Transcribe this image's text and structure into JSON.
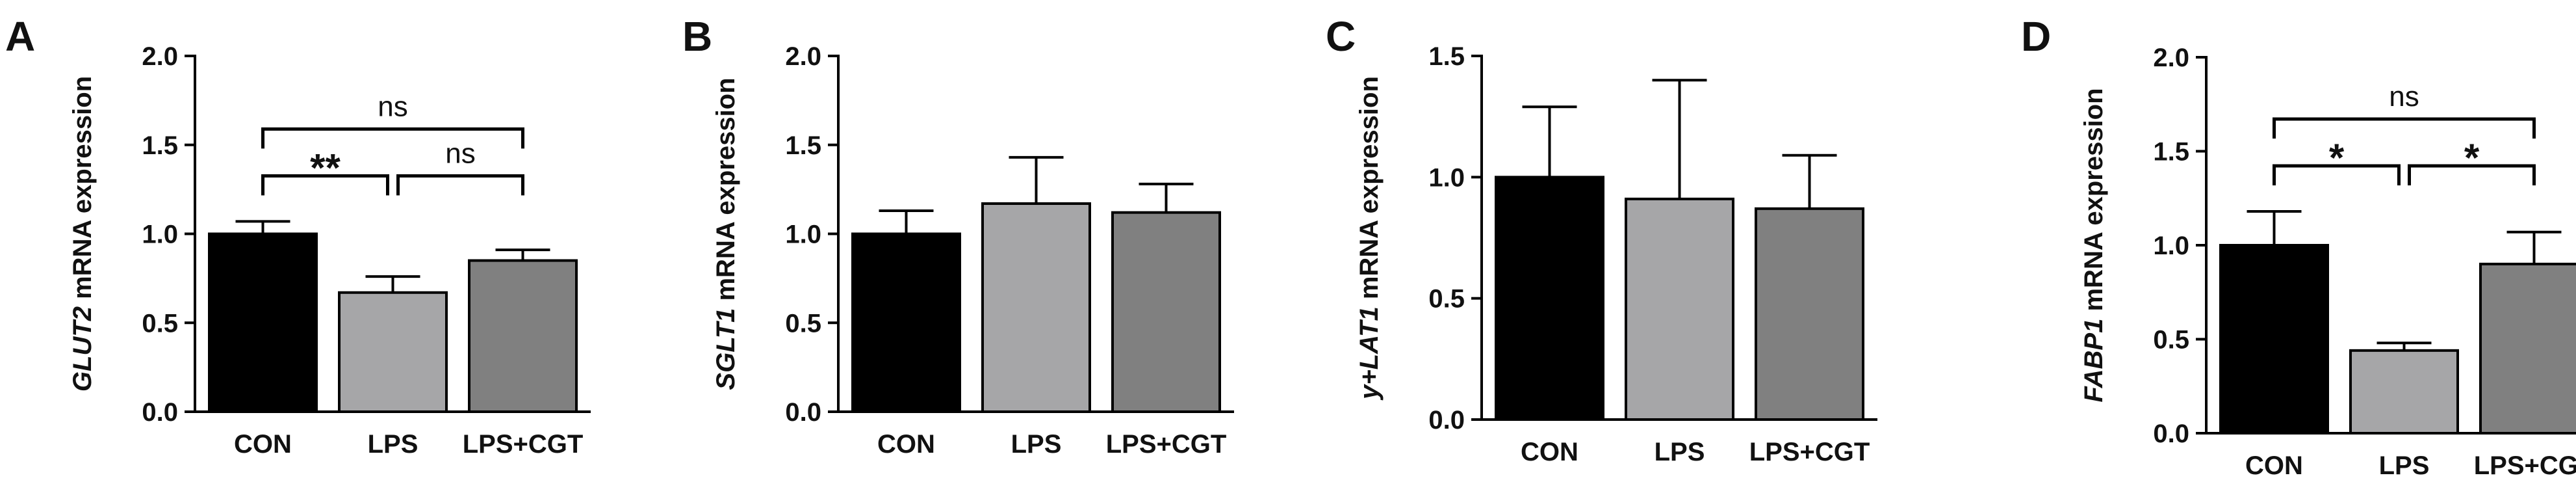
{
  "chart_data": [
    {
      "panel": "A",
      "type": "bar",
      "categories": [
        "CON",
        "LPS",
        "LPS+CGT"
      ],
      "values": [
        1.0,
        0.67,
        0.85
      ],
      "errors": [
        0.07,
        0.09,
        0.06
      ],
      "colors": [
        "#000000",
        "#a6a6a8",
        "#808080"
      ],
      "ylabel_italic": "GLUT2",
      "ylabel_rest": " mRNA expression",
      "ylim": [
        0,
        2.0
      ],
      "yticks": [
        "0.0",
        "0.5",
        "1.0",
        "1.5",
        "2.0"
      ],
      "significance": [
        {
          "from": 0,
          "to": 1,
          "label": "**",
          "level": 0
        },
        {
          "from": 1,
          "to": 2,
          "label": "ns",
          "level": 0
        },
        {
          "from": 0,
          "to": 2,
          "label": "ns",
          "level": 1
        }
      ]
    },
    {
      "panel": "B",
      "type": "bar",
      "categories": [
        "CON",
        "LPS",
        "LPS+CGT"
      ],
      "values": [
        1.0,
        1.17,
        1.12
      ],
      "errors": [
        0.13,
        0.26,
        0.16
      ],
      "colors": [
        "#000000",
        "#a6a6a8",
        "#808080"
      ],
      "ylabel_italic": "SGLT1",
      "ylabel_rest": " mRNA expression",
      "ylim": [
        0,
        2.0
      ],
      "yticks": [
        "0.0",
        "0.5",
        "1.0",
        "1.5",
        "2.0"
      ],
      "significance": []
    },
    {
      "panel": "C",
      "type": "bar",
      "categories": [
        "CON",
        "LPS",
        "LPS+CGT"
      ],
      "values": [
        1.0,
        0.91,
        0.87
      ],
      "errors": [
        0.29,
        0.49,
        0.22
      ],
      "colors": [
        "#000000",
        "#a6a6a8",
        "#808080"
      ],
      "ylabel_italic": "y+LAT1",
      "ylabel_rest": " mRNA expression",
      "ylim": [
        0,
        1.5
      ],
      "yticks": [
        "0.0",
        "0.5",
        "1.0",
        "1.5"
      ],
      "significance": []
    },
    {
      "panel": "D",
      "type": "bar",
      "categories": [
        "CON",
        "LPS",
        "LPS+CGT"
      ],
      "values": [
        1.0,
        0.44,
        0.9
      ],
      "errors": [
        0.18,
        0.04,
        0.17
      ],
      "colors": [
        "#000000",
        "#a6a6a8",
        "#808080"
      ],
      "ylabel_italic": "FABP1",
      "ylabel_rest": " mRNA expression",
      "ylim": [
        0,
        2.0
      ],
      "yticks": [
        "0.0",
        "0.5",
        "1.0",
        "1.5",
        "2.0"
      ],
      "significance": [
        {
          "from": 0,
          "to": 1,
          "label": "*",
          "level": 0
        },
        {
          "from": 1,
          "to": 2,
          "label": "*",
          "level": 0
        },
        {
          "from": 0,
          "to": 2,
          "label": "ns",
          "level": 1
        }
      ]
    }
  ]
}
